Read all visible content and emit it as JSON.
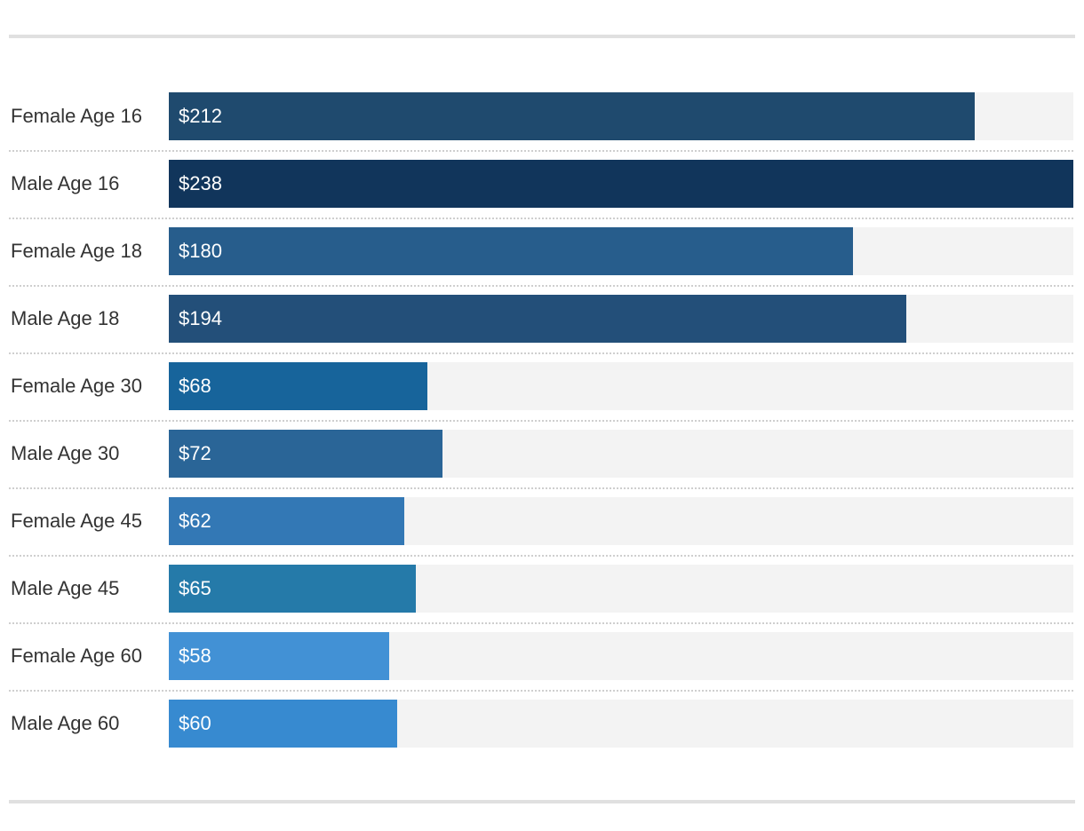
{
  "chart_data": {
    "type": "bar",
    "orientation": "horizontal",
    "title": "",
    "xlabel": "",
    "ylabel": "",
    "xlim": [
      0,
      238
    ],
    "categories": [
      "Female Age 16",
      "Male Age 16",
      "Female Age 18",
      "Male Age 18",
      "Female Age 30",
      "Male Age 30",
      "Female Age 45",
      "Male Age 45",
      "Female Age 60",
      "Male Age 60"
    ],
    "values": [
      212,
      238,
      180,
      194,
      68,
      72,
      62,
      65,
      58,
      60
    ],
    "value_labels": [
      "$212",
      "$238",
      "$180",
      "$194",
      "$68",
      "$72",
      "$62",
      "$65",
      "$58",
      "$60"
    ],
    "colors": [
      "#1f4a6e",
      "#11355b",
      "#275d8c",
      "#234f79",
      "#17649b",
      "#2a6597",
      "#3378b5",
      "#257aa9",
      "#4291d5",
      "#378ad0"
    ]
  }
}
